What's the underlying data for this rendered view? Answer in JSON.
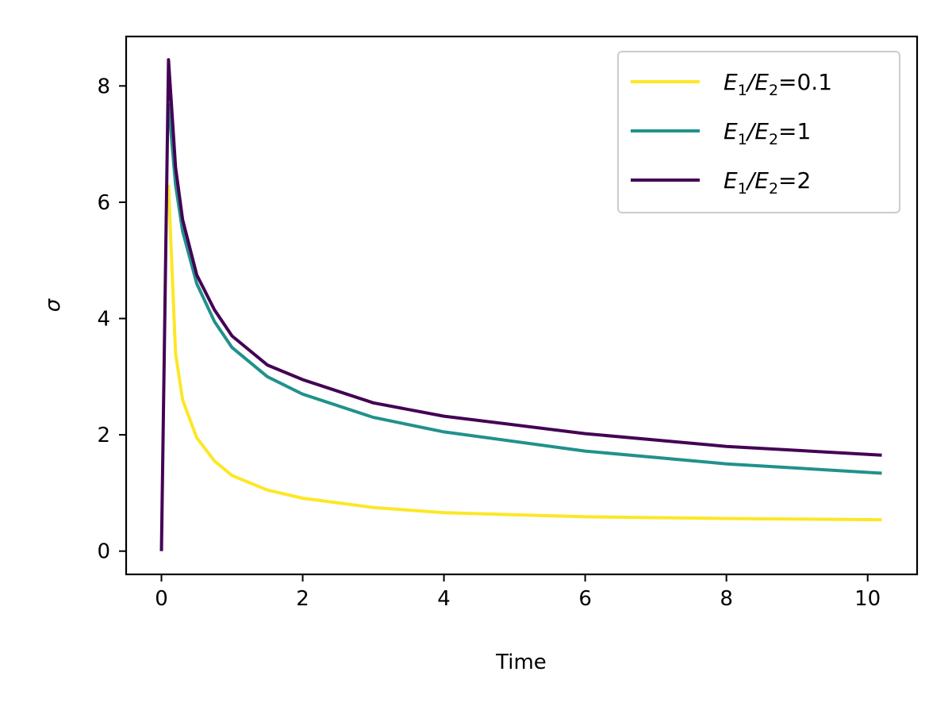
{
  "chart_data": {
    "type": "line",
    "title": "",
    "xlabel": "Time",
    "ylabel": "σ",
    "xlim": [
      -0.5,
      10.7
    ],
    "ylim": [
      -0.4,
      8.85
    ],
    "xticks": [
      0,
      2,
      4,
      6,
      8,
      10
    ],
    "xtick_labels": [
      "0",
      "2",
      "4",
      "6",
      "8",
      "10"
    ],
    "yticks": [
      0,
      2,
      4,
      6,
      8
    ],
    "ytick_labels": [
      "0",
      "2",
      "4",
      "6",
      "8"
    ],
    "grid": false,
    "legend_position": "upper right",
    "series": [
      {
        "name": "E1/E2=0.1",
        "legend": {
          "base": "E",
          "sub1": "1",
          "slash": "/",
          "sub2": "2",
          "suffix": "=0.1"
        },
        "color": "#fde725",
        "x": [
          0.1,
          0.2,
          0.3,
          0.5,
          0.75,
          1.0,
          1.5,
          2.0,
          3.0,
          4.0,
          6.0,
          8.0,
          10.2
        ],
        "y": [
          6.3,
          3.4,
          2.6,
          1.95,
          1.55,
          1.3,
          1.05,
          0.91,
          0.75,
          0.66,
          0.59,
          0.56,
          0.54
        ]
      },
      {
        "name": "E1/E2=1",
        "legend": {
          "base": "E",
          "sub1": "1",
          "slash": "/",
          "sub2": "2",
          "suffix": "=1"
        },
        "color": "#21918c",
        "x": [
          0.1,
          0.2,
          0.3,
          0.5,
          0.75,
          1.0,
          1.5,
          2.0,
          3.0,
          4.0,
          6.0,
          8.0,
          10.2
        ],
        "y": [
          7.7,
          6.3,
          5.5,
          4.6,
          3.95,
          3.5,
          3.0,
          2.7,
          2.3,
          2.05,
          1.72,
          1.5,
          1.34
        ]
      },
      {
        "name": "E1/E2=2",
        "legend": {
          "base": "E",
          "sub1": "1",
          "slash": "/",
          "sub2": "2",
          "suffix": "=2"
        },
        "color": "#440154",
        "x": [
          0.0,
          0.1,
          0.2,
          0.3,
          0.5,
          0.75,
          1.0,
          1.5,
          2.0,
          3.0,
          4.0,
          6.0,
          8.0,
          10.2
        ],
        "y": [
          0.0,
          8.45,
          6.6,
          5.7,
          4.75,
          4.15,
          3.7,
          3.2,
          2.95,
          2.55,
          2.32,
          2.02,
          1.8,
          1.65
        ]
      }
    ]
  }
}
